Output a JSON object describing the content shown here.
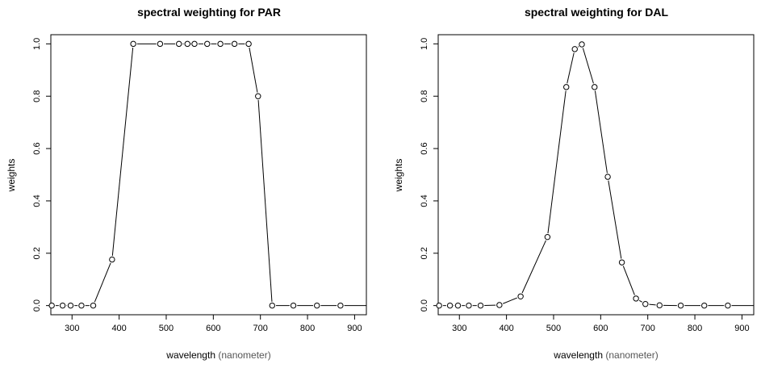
{
  "chart_data": [
    {
      "type": "line",
      "title": "spectral weighting for PAR",
      "xlabel": "wavelength",
      "xunit": "(nanometer)",
      "ylabel": "weights",
      "xlim": [
        255,
        925
      ],
      "ylim": [
        -0.035,
        1.035
      ],
      "xticks": [
        300,
        400,
        500,
        600,
        700,
        800,
        900
      ],
      "yticks": [
        0.0,
        0.2,
        0.4,
        0.6,
        0.8,
        1.0
      ],
      "ytick_labels": [
        "0.0",
        "0.2",
        "0.4",
        "0.6",
        "0.8",
        "1.0"
      ],
      "points": [
        {
          "x": 257,
          "y": 0
        },
        {
          "x": 280,
          "y": 0
        },
        {
          "x": 297,
          "y": 0
        },
        {
          "x": 320,
          "y": 0
        },
        {
          "x": 345,
          "y": 0
        },
        {
          "x": 385,
          "y": 0.176
        },
        {
          "x": 430,
          "y": 1
        },
        {
          "x": 487,
          "y": 1
        },
        {
          "x": 527,
          "y": 1
        },
        {
          "x": 545,
          "y": 1
        },
        {
          "x": 560,
          "y": 1
        },
        {
          "x": 587,
          "y": 1
        },
        {
          "x": 615,
          "y": 1
        },
        {
          "x": 645,
          "y": 1
        },
        {
          "x": 675,
          "y": 1
        },
        {
          "x": 695,
          "y": 0.8
        },
        {
          "x": 725,
          "y": 0
        },
        {
          "x": 770,
          "y": 0
        },
        {
          "x": 820,
          "y": 0
        },
        {
          "x": 870,
          "y": 0
        }
      ],
      "line_extends_to_x": 925
    },
    {
      "type": "line",
      "title": "spectral weighting for DAL",
      "xlabel": "wavelength",
      "xunit": "(nanometer)",
      "ylabel": "weights",
      "xlim": [
        255,
        925
      ],
      "ylim": [
        -0.035,
        1.035
      ],
      "xticks": [
        300,
        400,
        500,
        600,
        700,
        800,
        900
      ],
      "yticks": [
        0.0,
        0.2,
        0.4,
        0.6,
        0.8,
        1.0
      ],
      "ytick_labels": [
        "0.0",
        "0.2",
        "0.4",
        "0.6",
        "0.8",
        "1.0"
      ],
      "points": [
        {
          "x": 257,
          "y": 0
        },
        {
          "x": 280,
          "y": 0
        },
        {
          "x": 297,
          "y": 0
        },
        {
          "x": 320,
          "y": 0
        },
        {
          "x": 345,
          "y": 0
        },
        {
          "x": 385,
          "y": 0.002
        },
        {
          "x": 430,
          "y": 0.035
        },
        {
          "x": 487,
          "y": 0.262
        },
        {
          "x": 527,
          "y": 0.835
        },
        {
          "x": 545,
          "y": 0.98
        },
        {
          "x": 560,
          "y": 0.998
        },
        {
          "x": 587,
          "y": 0.835
        },
        {
          "x": 615,
          "y": 0.492
        },
        {
          "x": 645,
          "y": 0.165
        },
        {
          "x": 675,
          "y": 0.027
        },
        {
          "x": 695,
          "y": 0.006
        },
        {
          "x": 725,
          "y": 0.001
        },
        {
          "x": 770,
          "y": 0
        },
        {
          "x": 820,
          "y": 0
        },
        {
          "x": 870,
          "y": 0
        }
      ],
      "line_extends_to_x": 925
    }
  ]
}
